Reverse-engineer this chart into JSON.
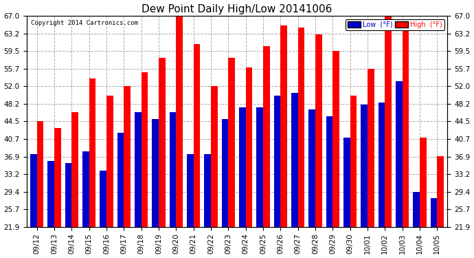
{
  "title": "Dew Point Daily High/Low 20141006",
  "copyright": "Copyright 2014 Cartronics.com",
  "dates": [
    "09/12",
    "09/13",
    "09/14",
    "09/15",
    "09/16",
    "09/17",
    "09/18",
    "09/19",
    "09/20",
    "09/21",
    "09/22",
    "09/23",
    "09/24",
    "09/25",
    "09/26",
    "09/27",
    "09/28",
    "09/29",
    "09/30",
    "10/01",
    "10/02",
    "10/03",
    "10/04",
    "10/05"
  ],
  "high_values": [
    44.5,
    43.0,
    46.5,
    53.6,
    50.0,
    52.0,
    55.0,
    58.0,
    68.0,
    61.0,
    52.0,
    58.0,
    56.0,
    60.5,
    65.0,
    64.5,
    63.0,
    59.5,
    50.0,
    55.7,
    67.0,
    65.0,
    41.0,
    37.0
  ],
  "low_values": [
    37.5,
    36.0,
    35.5,
    38.0,
    34.0,
    42.0,
    46.5,
    45.0,
    46.5,
    37.5,
    37.5,
    45.0,
    47.5,
    47.5,
    50.0,
    50.5,
    47.0,
    45.5,
    41.0,
    48.0,
    48.5,
    53.0,
    29.4,
    28.0
  ],
  "yticks": [
    21.9,
    25.7,
    29.4,
    33.2,
    36.9,
    40.7,
    44.5,
    48.2,
    52.0,
    55.7,
    59.5,
    63.2,
    67.0
  ],
  "ymin": 21.9,
  "ymax": 67.0,
  "bar_width": 0.38,
  "high_color": "#ff0000",
  "low_color": "#0000cc",
  "bg_color": "#ffffff",
  "grid_color": "#aaaaaa",
  "title_fontsize": 11,
  "tick_fontsize": 7.5,
  "legend_low_bg": "#0000cc",
  "legend_high_bg": "#ff0000",
  "legend_text_color": "#ffffff"
}
